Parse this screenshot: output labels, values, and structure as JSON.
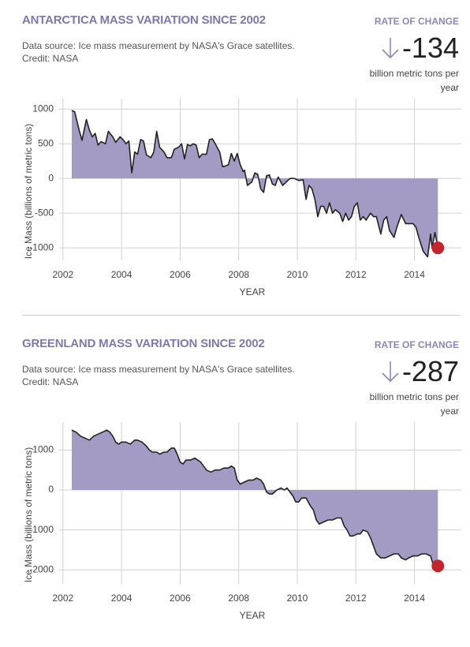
{
  "chart_data": [
    {
      "type": "area",
      "title": "ANTARCTICA MASS VARIATION SINCE 2002",
      "subtitle": "Data source: Ice mass measurement by NASA's Grace satellites.",
      "credit": "Credit: NASA",
      "rate_label": "RATE OF CHANGE",
      "rate_value": -134,
      "rate_unit": "billion metric tons per year",
      "xlabel": "YEAR",
      "ylabel": "Ice Mass (billions of metric tons)",
      "xlim": [
        2001.87,
        2015.6
      ],
      "ylim": [
        -1180,
        1150
      ],
      "xticks": [
        2002,
        2004,
        2006,
        2008,
        2010,
        2012,
        2014
      ],
      "yticks": [
        -1000,
        -500,
        0,
        500,
        1000
      ],
      "grid": true,
      "color": "#a39bc4",
      "line_color": "#222222",
      "highlight_color": "#c0272d",
      "x": [
        2002.3,
        2002.4,
        2002.55,
        2002.65,
        2002.8,
        2002.9,
        2003.0,
        2003.1,
        2003.2,
        2003.3,
        2003.45,
        2003.55,
        2003.7,
        2003.8,
        2003.95,
        2004.05,
        2004.15,
        2004.25,
        2004.35,
        2004.45,
        2004.55,
        2004.65,
        2004.75,
        2004.85,
        2005.0,
        2005.1,
        2005.2,
        2005.3,
        2005.45,
        2005.55,
        2005.7,
        2005.8,
        2005.95,
        2006.05,
        2006.15,
        2006.25,
        2006.35,
        2006.45,
        2006.55,
        2006.65,
        2006.75,
        2006.9,
        2007.0,
        2007.1,
        2007.2,
        2007.35,
        2007.45,
        2007.55,
        2007.65,
        2007.75,
        2007.85,
        2007.95,
        2008.05,
        2008.15,
        2008.2,
        2008.3,
        2008.45,
        2008.55,
        2008.65,
        2008.75,
        2008.85,
        2008.95,
        2009.05,
        2009.15,
        2009.25,
        2009.35,
        2009.5,
        2009.6,
        2009.75,
        2009.9,
        2010.05,
        2010.2,
        2010.3,
        2010.4,
        2010.5,
        2010.6,
        2010.7,
        2010.8,
        2010.9,
        2011.0,
        2011.1,
        2011.2,
        2011.3,
        2011.45,
        2011.55,
        2011.65,
        2011.75,
        2011.85,
        2011.95,
        2012.05,
        2012.15,
        2012.25,
        2012.35,
        2012.5,
        2012.6,
        2012.7,
        2012.85,
        2012.95,
        2013.05,
        2013.15,
        2013.3,
        2013.4,
        2013.55,
        2013.7,
        2013.85,
        2013.95,
        2014.05,
        2014.15,
        2014.3,
        2014.45,
        2014.55,
        2014.6,
        2014.7,
        2014.8
      ],
      "values": [
        980,
        960,
        700,
        550,
        850,
        700,
        600,
        650,
        480,
        530,
        500,
        680,
        600,
        520,
        600,
        560,
        500,
        540,
        80,
        380,
        350,
        560,
        540,
        340,
        300,
        380,
        680,
        450,
        380,
        300,
        300,
        420,
        450,
        500,
        280,
        490,
        470,
        500,
        480,
        300,
        350,
        350,
        560,
        570,
        500,
        380,
        170,
        180,
        200,
        360,
        250,
        360,
        200,
        100,
        120,
        -100,
        -50,
        80,
        60,
        -150,
        -200,
        40,
        50,
        -80,
        -100,
        20,
        -100,
        -60,
        0,
        0,
        -30,
        -20,
        -300,
        -100,
        -150,
        -300,
        -550,
        -400,
        -400,
        -500,
        -350,
        -500,
        -450,
        -500,
        -620,
        -500,
        -600,
        -550,
        -400,
        -350,
        -600,
        -550,
        -600,
        -500,
        -550,
        -550,
        -800,
        -600,
        -550,
        -750,
        -850,
        -700,
        -520,
        -650,
        -650,
        -650,
        -700,
        -850,
        -1050,
        -1130,
        -800,
        -1000,
        -780,
        -1000
      ]
    },
    {
      "type": "area",
      "title": "GREENLAND MASS VARIATION SINCE 2002",
      "subtitle": "Data source: Ice mass measurement by NASA's Grace satellites.",
      "credit": "Credit: NASA",
      "rate_label": "RATE OF CHANGE",
      "rate_value": -287,
      "rate_unit": "billion metric tons per year",
      "xlabel": "YEAR",
      "ylabel": "Ice Mass (billions of metric tons)",
      "xlim": [
        2001.87,
        2015.6
      ],
      "ylim": [
        -2350,
        1700
      ],
      "xticks": [
        2002,
        2004,
        2006,
        2008,
        2010,
        2012,
        2014
      ],
      "yticks": [
        -2000,
        -1000,
        0,
        1000
      ],
      "grid": true,
      "color": "#a39bc4",
      "line_color": "#222222",
      "highlight_color": "#c0272d",
      "x": [
        2002.3,
        2002.45,
        2002.6,
        2002.75,
        2002.9,
        2003.05,
        2003.2,
        2003.35,
        2003.5,
        2003.6,
        2003.7,
        2003.8,
        2003.9,
        2004.0,
        2004.15,
        2004.3,
        2004.45,
        2004.55,
        2004.7,
        2004.85,
        2004.95,
        2005.05,
        2005.2,
        2005.3,
        2005.45,
        2005.55,
        2005.7,
        2005.8,
        2005.9,
        2006.0,
        2006.1,
        2006.2,
        2006.35,
        2006.5,
        2006.6,
        2006.7,
        2006.8,
        2006.9,
        2007.05,
        2007.2,
        2007.35,
        2007.5,
        2007.65,
        2007.75,
        2007.85,
        2007.95,
        2008.05,
        2008.2,
        2008.35,
        2008.5,
        2008.6,
        2008.75,
        2008.85,
        2008.95,
        2009.05,
        2009.15,
        2009.3,
        2009.45,
        2009.55,
        2009.65,
        2009.75,
        2009.85,
        2009.95,
        2010.05,
        2010.15,
        2010.3,
        2010.45,
        2010.55,
        2010.65,
        2010.75,
        2010.9,
        2011.05,
        2011.2,
        2011.35,
        2011.5,
        2011.6,
        2011.7,
        2011.8,
        2011.9,
        2012.05,
        2012.15,
        2012.25,
        2012.4,
        2012.5,
        2012.6,
        2012.7,
        2012.85,
        2013.0,
        2013.15,
        2013.3,
        2013.45,
        2013.55,
        2013.7,
        2013.8,
        2013.95,
        2014.1,
        2014.25,
        2014.4,
        2014.55,
        2014.65,
        2014.8
      ],
      "values": [
        1500,
        1450,
        1350,
        1300,
        1250,
        1350,
        1400,
        1450,
        1500,
        1450,
        1350,
        1200,
        1150,
        1200,
        1200,
        1150,
        1250,
        1250,
        1200,
        1100,
        1000,
        950,
        950,
        900,
        950,
        950,
        1050,
        1050,
        900,
        700,
        650,
        750,
        750,
        800,
        750,
        700,
        600,
        500,
        450,
        500,
        500,
        550,
        550,
        600,
        550,
        250,
        150,
        200,
        250,
        250,
        300,
        250,
        150,
        -50,
        -100,
        -100,
        0,
        50,
        0,
        50,
        -50,
        -150,
        -300,
        -300,
        -200,
        -200,
        -400,
        -500,
        -750,
        -850,
        -800,
        -750,
        -750,
        -700,
        -700,
        -900,
        -1000,
        -1150,
        -1150,
        -1100,
        -1100,
        -1000,
        -1050,
        -1200,
        -1400,
        -1600,
        -1700,
        -1700,
        -1650,
        -1600,
        -1600,
        -1700,
        -1750,
        -1700,
        -1650,
        -1650,
        -1600,
        -1600,
        -1650,
        -1900,
        -1900
      ]
    }
  ]
}
